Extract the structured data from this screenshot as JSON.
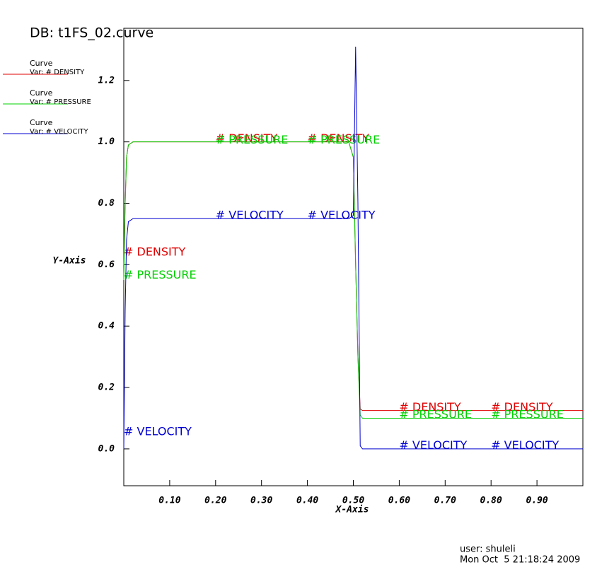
{
  "chart_data": {
    "type": "line",
    "title": "DB: t1FS_02.curve",
    "xlabel": "X-Axis",
    "ylabel": "Y-Axis",
    "legend_header": "Curve",
    "user": "user: shuleli",
    "date": "Mon Oct  5 21:18:24 2009",
    "xlim": [
      0,
      1.0
    ],
    "ylim": [
      -0.12,
      1.37
    ],
    "xticks": [
      {
        "value": 0.1,
        "label": "0.10"
      },
      {
        "value": 0.2,
        "label": "0.20"
      },
      {
        "value": 0.3,
        "label": "0.30"
      },
      {
        "value": 0.4,
        "label": "0.40"
      },
      {
        "value": 0.5,
        "label": "0.50"
      },
      {
        "value": 0.6,
        "label": "0.60"
      },
      {
        "value": 0.7,
        "label": "0.70"
      },
      {
        "value": 0.8,
        "label": "0.80"
      },
      {
        "value": 0.9,
        "label": "0.90"
      }
    ],
    "yticks": [
      {
        "value": 0,
        "label": "0.0"
      },
      0.2,
      0.4,
      0.6,
      0.8,
      {
        "value": 1,
        "label": "1.0"
      },
      1.2
    ],
    "x": [
      0,
      0.003,
      0.006,
      0.01,
      0.02,
      0.49,
      0.5,
      0.505,
      0.51,
      0.515,
      0.52,
      1.0
    ],
    "series": [
      {
        "name": "Var: # DENSITY",
        "label_text": "# DENSITY",
        "color": "#e00000",
        "values": [
          0.6,
          0.8,
          0.95,
          0.99,
          1.0,
          1.0,
          0.95,
          0.6,
          0.3,
          0.13,
          0.125,
          0.125
        ],
        "labels": [
          {
            "x": 0,
            "y": 0.64
          },
          {
            "x": 0.2,
            "y": 1.01
          },
          {
            "x": 0.4,
            "y": 1.01
          },
          {
            "x": 0.6,
            "y": 0.135
          },
          {
            "x": 0.8,
            "y": 0.135
          }
        ]
      },
      {
        "name": "Var: # PRESSURE",
        "label_text": "# PRESSURE",
        "color": "#00d000",
        "values": [
          0.55,
          0.8,
          0.95,
          0.99,
          1.0,
          1.0,
          0.95,
          0.6,
          0.3,
          0.11,
          0.1,
          0.1
        ],
        "labels": [
          {
            "x": 0,
            "y": 0.565
          },
          {
            "x": 0.2,
            "y": 1.005
          },
          {
            "x": 0.4,
            "y": 1.005
          },
          {
            "x": 0.6,
            "y": 0.11
          },
          {
            "x": 0.8,
            "y": 0.11
          }
        ]
      },
      {
        "name": "Var: # VELOCITY",
        "label_text": "# VELOCITY",
        "color": "#0000d0",
        "values": [
          0.0,
          0.45,
          0.68,
          0.74,
          0.75,
          0.75,
          0.76,
          1.31,
          0.8,
          0.01,
          0.0,
          0.0
        ],
        "labels": [
          {
            "x": 0,
            "y": 0.055
          },
          {
            "x": 0.2,
            "y": 0.76
          },
          {
            "x": 0.4,
            "y": 0.76
          },
          {
            "x": 0.6,
            "y": 0.01
          },
          {
            "x": 0.8,
            "y": 0.01
          }
        ]
      }
    ]
  }
}
